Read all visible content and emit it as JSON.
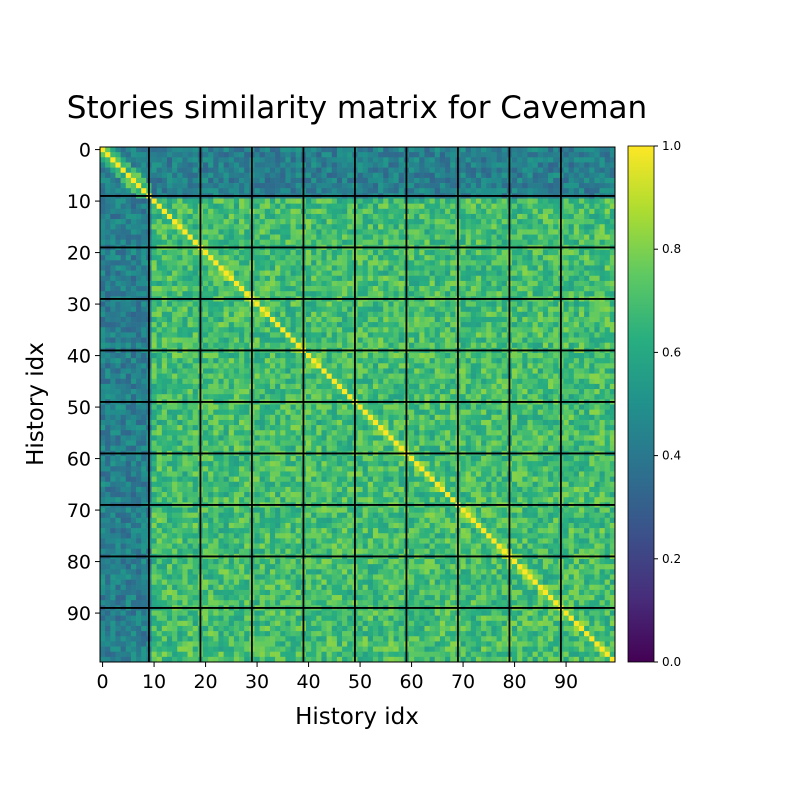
{
  "chart_data": {
    "type": "heatmap",
    "title": "Stories similarity matrix for Caveman",
    "xlabel": "History idx",
    "ylabel": "History idx",
    "n": 100,
    "block_size": 10,
    "x_ticks": [
      0,
      10,
      20,
      30,
      40,
      50,
      60,
      70,
      80,
      90
    ],
    "y_ticks": [
      0,
      10,
      20,
      30,
      40,
      50,
      60,
      70,
      80,
      90
    ],
    "value_range": [
      0.0,
      1.0
    ],
    "colorbar_ticks": [
      "0.0",
      "0.2",
      "0.4",
      "0.6",
      "0.8",
      "1.0"
    ],
    "colormap": "viridis",
    "diagonal_value": 1.0,
    "typical_off_diagonal_value": 0.7,
    "low_similarity_rows": [
      0,
      1,
      2,
      3,
      4,
      5,
      6,
      7,
      8,
      9
    ],
    "low_similarity_value": 0.42,
    "grid_lines": true,
    "grid_color": "#000000"
  }
}
